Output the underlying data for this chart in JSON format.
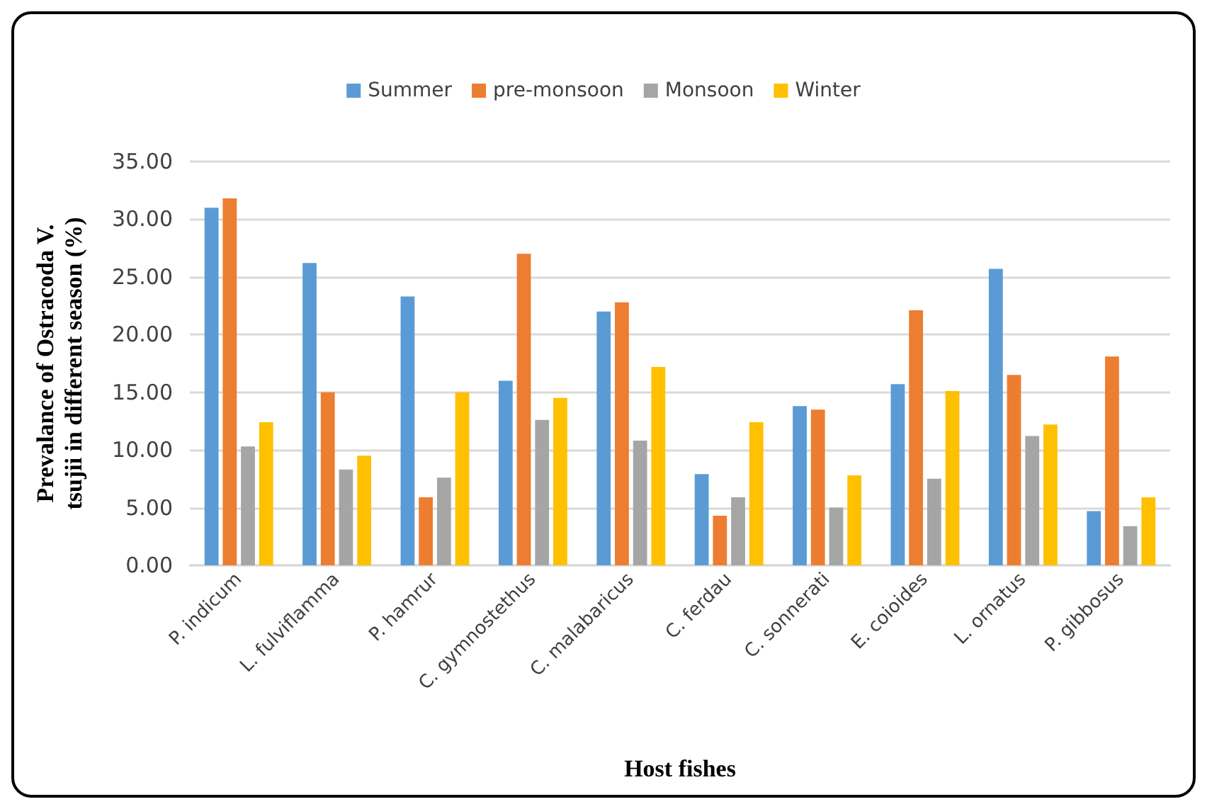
{
  "chart_data": {
    "type": "bar",
    "xlabel": "Host fishes",
    "ylabel": "Prevalance of Ostracoda V.\ntsujii in different season (%)",
    "categories": [
      "P. indicum",
      "L. fulviflamma",
      "P. hamrur",
      "C. gymnostethus",
      "C. malabaricus",
      "C. ferdau",
      "C. sonnerati",
      "E. coioides",
      "L. ornatus",
      "P. gibbosus"
    ],
    "series": [
      {
        "name": "Summer",
        "color": "#5b9bd5",
        "values": [
          31.0,
          26.2,
          23.3,
          16.0,
          22.0,
          7.9,
          13.8,
          15.7,
          25.7,
          4.7
        ]
      },
      {
        "name": "pre-monsoon",
        "color": "#ed7d31",
        "values": [
          31.8,
          15.0,
          5.9,
          27.0,
          22.8,
          4.3,
          13.5,
          22.1,
          16.5,
          18.1
        ]
      },
      {
        "name": "Monsoon",
        "color": "#a5a5a5",
        "values": [
          10.3,
          8.3,
          7.6,
          12.6,
          10.8,
          5.9,
          5.0,
          7.5,
          11.2,
          3.4
        ]
      },
      {
        "name": "Winter",
        "color": "#ffc000",
        "values": [
          12.4,
          9.5,
          15.0,
          14.5,
          17.2,
          12.4,
          7.8,
          15.1,
          12.2,
          5.9
        ]
      }
    ],
    "ylim": [
      0,
      35
    ],
    "yticks": [
      {
        "value": 0,
        "label": "0.00"
      },
      {
        "value": 5,
        "label": "5.00"
      },
      {
        "value": 10,
        "label": "10.00"
      },
      {
        "value": 15,
        "label": "15.00"
      },
      {
        "value": 20,
        "label": "20.00"
      },
      {
        "value": 25,
        "label": "25.00"
      },
      {
        "value": 30,
        "label": "30.00"
      },
      {
        "value": 35,
        "label": "35.00"
      }
    ],
    "grid": "y",
    "legend": "top"
  }
}
